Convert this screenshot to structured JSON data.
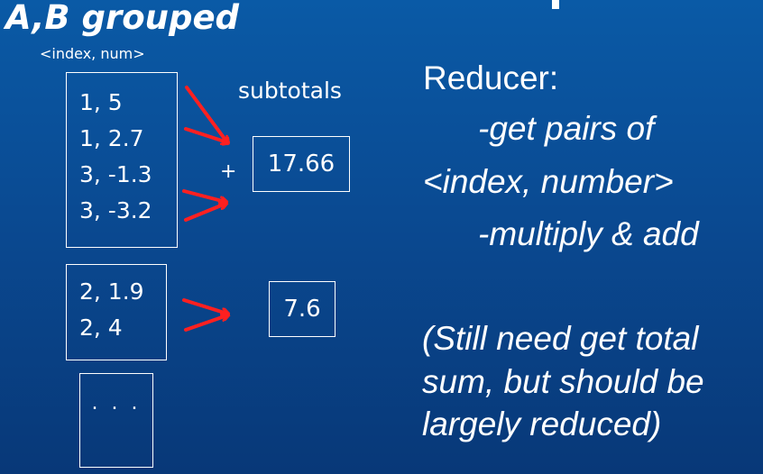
{
  "title": "A,B grouped",
  "subtitle": "<index, num>",
  "groups": [
    {
      "rows": [
        "1, 5",
        "1, 2.7",
        "3, -1.3",
        "3, -3.2"
      ]
    },
    {
      "rows": [
        "2, 1.9",
        "2, 4"
      ]
    },
    {
      "rows": [
        ". . ."
      ]
    }
  ],
  "subtotals": {
    "label": "subtotals",
    "plus": "+",
    "values": [
      "17.66",
      "7.6"
    ]
  },
  "reducer": {
    "heading": "Reducer:",
    "lines": [
      "-get pairs of",
      "<index, number>",
      "-multiply & add"
    ]
  },
  "note": {
    "lines": [
      "(Still need get total",
      "sum, but should be",
      "largely reduced)"
    ]
  },
  "colors": {
    "background_top": "#0a5aa6",
    "background_bottom": "#083878",
    "arrow": "#ff2020",
    "text": "#ffffff"
  }
}
